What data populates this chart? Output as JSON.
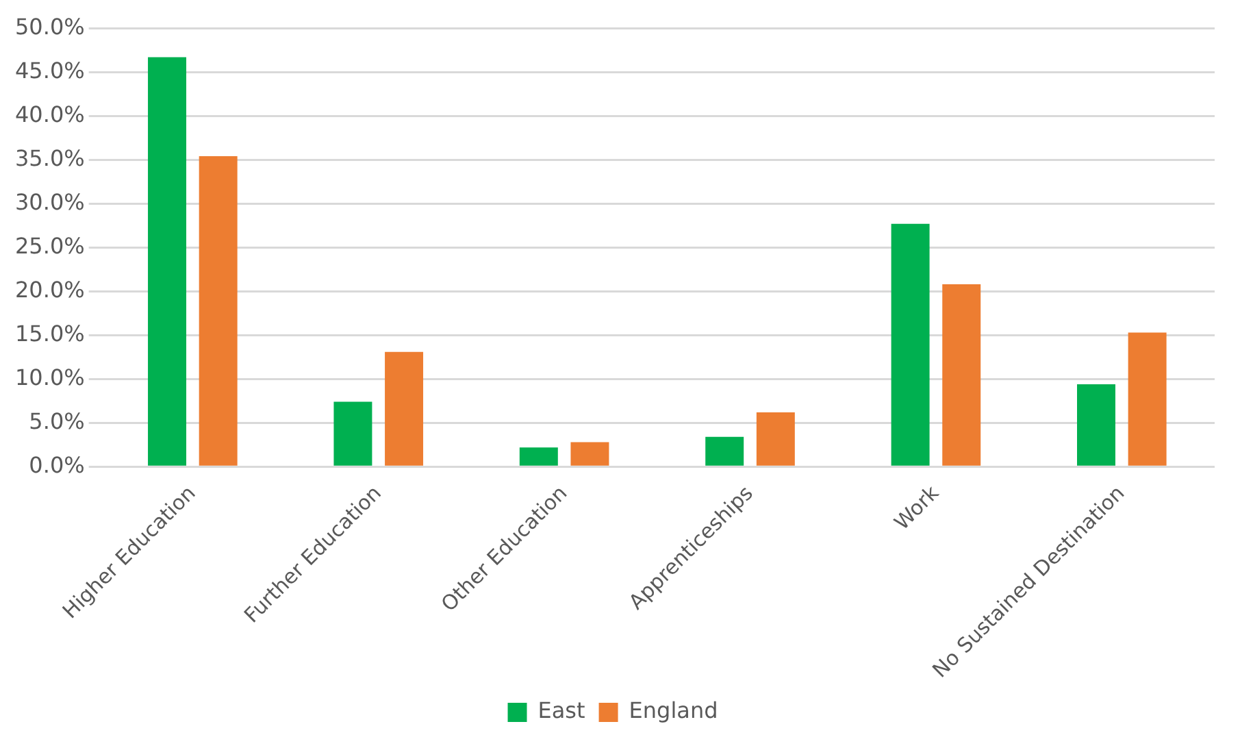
{
  "chart_data": {
    "type": "bar",
    "categories": [
      "Higher Education",
      "Further Education",
      "Other Education",
      "Apprenticeships",
      "Work",
      "No Sustained Destination"
    ],
    "series": [
      {
        "name": "East",
        "color": "#00b050",
        "values": [
          46.7,
          7.4,
          2.2,
          3.4,
          27.7,
          9.4
        ]
      },
      {
        "name": "England",
        "color": "#ed7d31",
        "values": [
          35.4,
          13.1,
          2.8,
          6.2,
          20.8,
          15.3
        ]
      }
    ],
    "ylim": [
      0,
      50
    ],
    "yticks": [
      {
        "value": 0,
        "label": "0.0%"
      },
      {
        "value": 5,
        "label": "5.0%"
      },
      {
        "value": 10,
        "label": "10.0%"
      },
      {
        "value": 15,
        "label": "15.0%"
      },
      {
        "value": 20,
        "label": "20.0%"
      },
      {
        "value": 25,
        "label": "25.0%"
      },
      {
        "value": 30,
        "label": "30.0%"
      },
      {
        "value": 35,
        "label": "35.0%"
      },
      {
        "value": 40,
        "label": "40.0%"
      },
      {
        "value": 45,
        "label": "45.0%"
      },
      {
        "value": 50,
        "label": "50.0%"
      }
    ],
    "grid": "y",
    "legend": "bottom"
  }
}
